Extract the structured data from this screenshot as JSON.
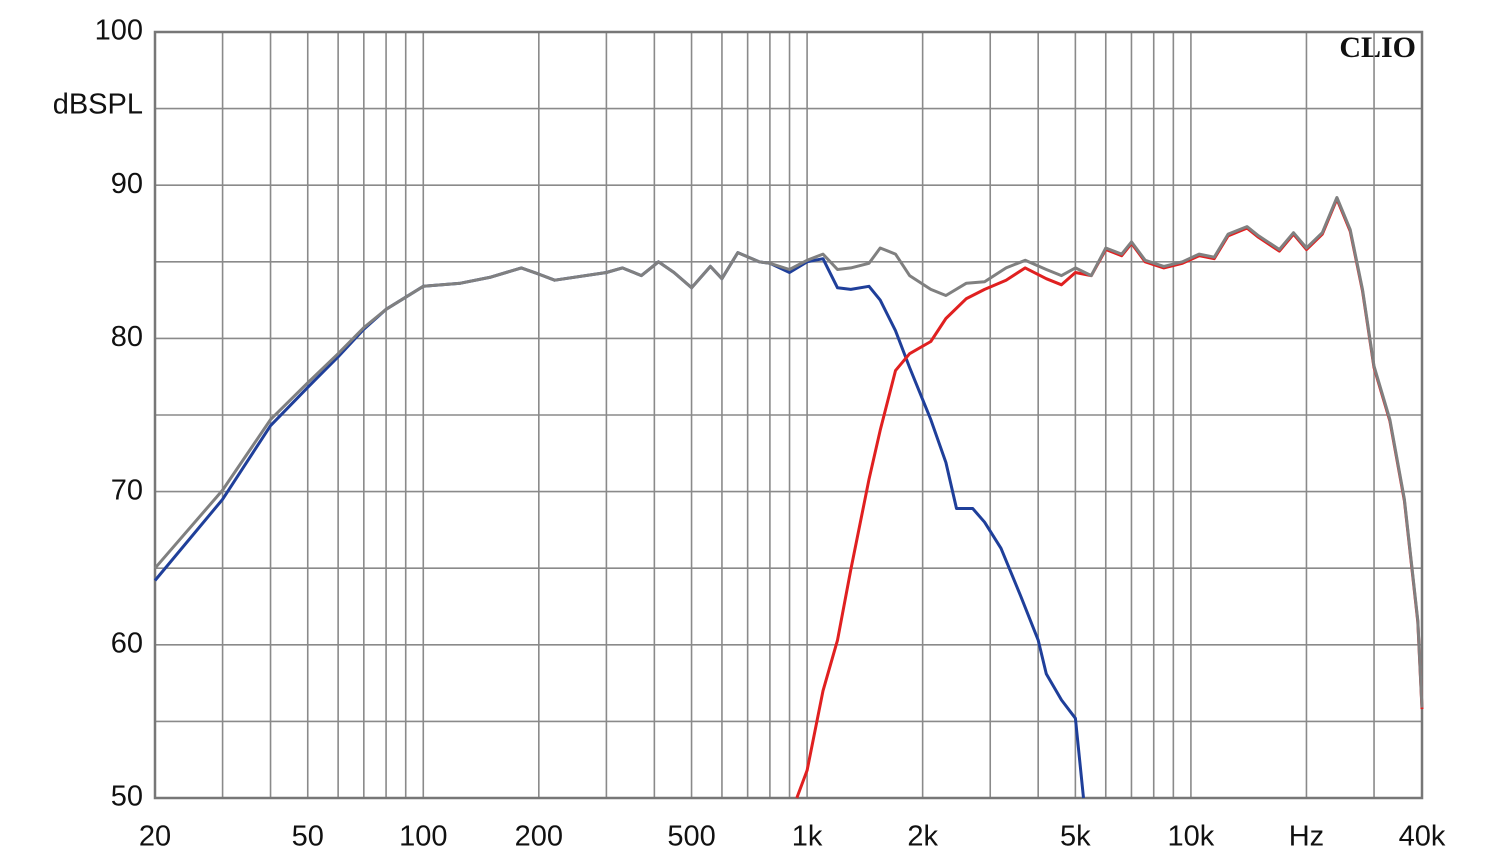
{
  "chart_data": {
    "type": "line",
    "ylabel": "dBSPL",
    "annotation": "CLIO",
    "log_x": true,
    "grid": true,
    "xlim": [
      20,
      40000
    ],
    "ylim": [
      50,
      100
    ],
    "xticks": [
      20,
      50,
      100,
      200,
      500,
      {
        "value": 1000,
        "label": "1k"
      },
      {
        "value": 2000,
        "label": "2k"
      },
      {
        "value": 5000,
        "label": "5k"
      },
      {
        "value": 10000,
        "label": "10k"
      },
      {
        "value": 20000,
        "label": "Hz"
      },
      {
        "value": 40000,
        "label": "40k"
      }
    ],
    "yticks": [
      50,
      60,
      70,
      80,
      90,
      100
    ],
    "series": [
      {
        "color": "#1f3f9a",
        "x": [
          20,
          30,
          40,
          50,
          60,
          70,
          80,
          100,
          125,
          150,
          180,
          200,
          220,
          300,
          330,
          370,
          410,
          450,
          500,
          560,
          600,
          660,
          750,
          800,
          900,
          1000,
          1100,
          1200,
          1300,
          1450,
          1550,
          1700,
          1850,
          2100,
          2300,
          2450,
          2700,
          2900,
          3200,
          3600,
          4000,
          4200,
          4600,
          5000,
          5250
        ],
        "values": [
          64.2,
          69.5,
          74.3,
          76.8,
          78.8,
          80.6,
          81.9,
          83.4,
          83.6,
          84,
          84.6,
          84.2,
          83.8,
          84.3,
          84.6,
          84.1,
          85,
          84.3,
          83.3,
          84.7,
          83.9,
          85.6,
          85,
          84.9,
          84.3,
          85,
          85.2,
          83.3,
          83.2,
          83.4,
          82.5,
          80.5,
          78.1,
          74.7,
          71.9,
          68.9,
          68.9,
          68,
          66.3,
          63.2,
          60.3,
          58.1,
          56.4,
          55.2,
          50
        ]
      },
      {
        "color": "#e02020",
        "x": [
          940,
          1000,
          1100,
          1200,
          1300,
          1450,
          1550,
          1700,
          1850,
          2100,
          2300,
          2600,
          2900,
          3300,
          3700,
          4200,
          4600,
          5000,
          5500,
          6000,
          6600,
          7000,
          7600,
          8500,
          9500,
          10500,
          11500,
          12500,
          14000,
          15000,
          17000,
          18500,
          20000,
          22000,
          24000,
          26000,
          28000,
          30000,
          33000,
          36000,
          39000,
          40000
        ],
        "values": [
          50,
          51.8,
          57,
          60.3,
          64.9,
          70.8,
          74,
          77.9,
          79,
          79.8,
          81.3,
          82.6,
          83.2,
          83.8,
          84.6,
          83.9,
          83.5,
          84.3,
          84.1,
          85.8,
          85.4,
          86.2,
          85,
          84.6,
          84.9,
          85.4,
          85.2,
          86.7,
          87.2,
          86.6,
          85.7,
          86.8,
          85.8,
          86.8,
          89.1,
          87,
          83.1,
          78.1,
          74.6,
          69.4,
          61.5,
          55.8
        ]
      },
      {
        "color": "#808080",
        "x": [
          20,
          30,
          40,
          50,
          60,
          70,
          80,
          100,
          125,
          150,
          180,
          200,
          220,
          300,
          330,
          370,
          410,
          450,
          500,
          560,
          600,
          660,
          750,
          800,
          900,
          1000,
          1100,
          1200,
          1300,
          1450,
          1550,
          1700,
          1850,
          2100,
          2300,
          2600,
          2900,
          3300,
          3700,
          4200,
          4600,
          5000,
          5500,
          6000,
          6600,
          7000,
          7600,
          8500,
          9500,
          10500,
          11500,
          12500,
          14000,
          15000,
          17000,
          18500,
          20000,
          22000,
          24000,
          26000,
          28000,
          30000,
          33000,
          36000,
          39000,
          40000
        ],
        "values": [
          65,
          70.1,
          74.7,
          77.1,
          79,
          80.7,
          81.9,
          83.4,
          83.6,
          84,
          84.6,
          84.2,
          83.8,
          84.3,
          84.6,
          84.1,
          85,
          84.3,
          83.3,
          84.7,
          83.9,
          85.6,
          85,
          84.9,
          84.5,
          85.1,
          85.5,
          84.5,
          84.6,
          84.9,
          85.9,
          85.5,
          84.1,
          83.2,
          82.8,
          83.6,
          83.7,
          84.6,
          85.1,
          84.5,
          84.1,
          84.6,
          84.1,
          85.9,
          85.5,
          86.3,
          85.1,
          84.7,
          85,
          85.5,
          85.3,
          86.8,
          87.3,
          86.7,
          85.8,
          86.9,
          85.9,
          86.9,
          89.2,
          87.1,
          83.2,
          78.2,
          74.7,
          69.5,
          61.6,
          55.9
        ]
      }
    ]
  }
}
